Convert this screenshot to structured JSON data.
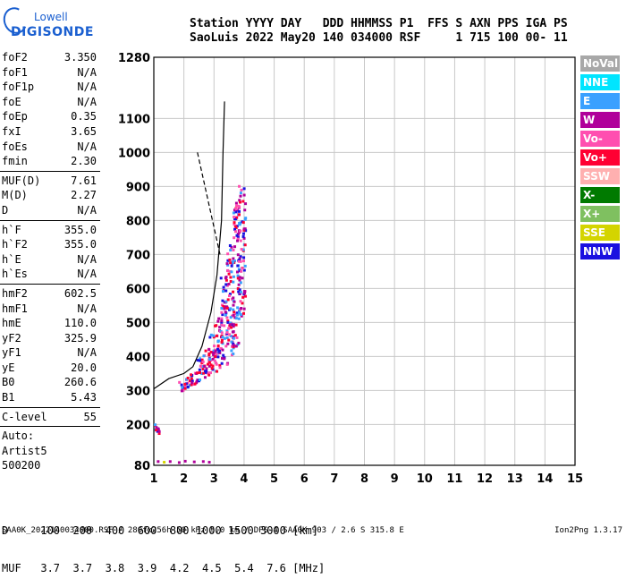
{
  "logo": {
    "line1": "Lowell",
    "line2": "DIGISONDE"
  },
  "header": {
    "line1": "Station YYYY DAY   DDD HHMMSS P1  FFS S AXN PPS IGA PS",
    "line2": "SaoLuis 2022 May20 140 034000 RSF     1 715 100 00- 11"
  },
  "params": [
    {
      "label": "foF2",
      "value": "3.350"
    },
    {
      "label": "foF1",
      "value": "N/A"
    },
    {
      "label": "foF1p",
      "value": "N/A"
    },
    {
      "label": "foE",
      "value": "N/A"
    },
    {
      "label": "foEp",
      "value": "0.35"
    },
    {
      "label": "fxI",
      "value": "3.65"
    },
    {
      "label": "foEs",
      "value": "N/A"
    },
    {
      "label": "fmin",
      "value": "2.30"
    },
    {
      "sep": true
    },
    {
      "label": "MUF(D)",
      "value": "7.61"
    },
    {
      "label": "M(D)",
      "value": "2.27"
    },
    {
      "label": "D",
      "value": "N/A"
    },
    {
      "sep": true
    },
    {
      "label": "h`F",
      "value": "355.0"
    },
    {
      "label": "h`F2",
      "value": "355.0"
    },
    {
      "label": "h`E",
      "value": "N/A"
    },
    {
      "label": "h`Es",
      "value": "N/A"
    },
    {
      "sep": true
    },
    {
      "label": "hmF2",
      "value": "602.5"
    },
    {
      "label": "hmF1",
      "value": "N/A"
    },
    {
      "label": "hmE",
      "value": "110.0"
    },
    {
      "label": "yF2",
      "value": "325.9"
    },
    {
      "label": "yF1",
      "value": "N/A"
    },
    {
      "label": "yE",
      "value": "20.0"
    },
    {
      "label": "B0",
      "value": "260.6"
    },
    {
      "label": "B1",
      "value": "5.43"
    },
    {
      "sep": true
    },
    {
      "label": "C-level",
      "value": "55"
    },
    {
      "sep": true
    },
    {
      "text": "Auto:"
    },
    {
      "text": "Artist5"
    },
    {
      "text": "500200"
    }
  ],
  "legend": [
    {
      "label": "NoVal",
      "bg": "#a8a8a8",
      "fg": "#ffffff"
    },
    {
      "label": "NNE",
      "bg": "#00e5ff",
      "fg": "#ffffff"
    },
    {
      "label": "E",
      "bg": "#3aa0ff",
      "fg": "#ffffff"
    },
    {
      "label": "W",
      "bg": "#b0009a",
      "fg": "#ffffff"
    },
    {
      "label": "Vo-",
      "bg": "#ff4fb0",
      "fg": "#ffffff"
    },
    {
      "label": "Vo+",
      "bg": "#ff0033",
      "fg": "#ffffff"
    },
    {
      "label": "SSW",
      "bg": "#ffb0b0",
      "fg": "#ffffff"
    },
    {
      "label": "X-",
      "bg": "#007a00",
      "fg": "#ffffff"
    },
    {
      "label": "X+",
      "bg": "#7fc060",
      "fg": "#ffffff"
    },
    {
      "label": "SSE",
      "bg": "#d4d400",
      "fg": "#ffffff"
    },
    {
      "label": "NNW",
      "bg": "#1a10e0",
      "fg": "#ffffff"
    }
  ],
  "chart_data": {
    "type": "scatter",
    "xlim": [
      1,
      15
    ],
    "ylim": [
      80,
      1280
    ],
    "x_ticks": [
      1,
      2,
      3,
      4,
      5,
      6,
      7,
      8,
      9,
      10,
      11,
      12,
      13,
      14,
      15
    ],
    "y_ticks": [
      80,
      200,
      300,
      400,
      500,
      600,
      700,
      800,
      900,
      1000,
      1100,
      1280
    ],
    "grid": true,
    "colors": {
      "W": "#b0009a",
      "Vo-": "#ff4fb0",
      "Vo+": "#ff0033",
      "NNW": "#1a10e0",
      "E": "#3aa0ff",
      "SSE": "#d4d400",
      "NoVal": "#a8a8a8",
      "trace": "#000000"
    },
    "echo_bands": [
      {
        "f": 1.1,
        "h_min": 175,
        "h_max": 205
      },
      {
        "f": 1.9,
        "h_min": 300,
        "h_max": 330
      },
      {
        "f": 2.1,
        "h_min": 310,
        "h_max": 345
      },
      {
        "f": 2.3,
        "h_min": 320,
        "h_max": 360
      },
      {
        "f": 2.5,
        "h_min": 330,
        "h_max": 400
      },
      {
        "f": 2.7,
        "h_min": 340,
        "h_max": 430
      },
      {
        "f": 2.9,
        "h_min": 350,
        "h_max": 470
      },
      {
        "f": 3.1,
        "h_min": 360,
        "h_max": 530
      },
      {
        "f": 3.3,
        "h_min": 380,
        "h_max": 640
      },
      {
        "f": 3.5,
        "h_min": 400,
        "h_max": 750
      },
      {
        "f": 3.7,
        "h_min": 430,
        "h_max": 860
      },
      {
        "f": 3.9,
        "h_min": 520,
        "h_max": 910
      }
    ],
    "profile_line": [
      {
        "f": 1.0,
        "h": 305
      },
      {
        "f": 1.5,
        "h": 335
      },
      {
        "f": 2.0,
        "h": 350
      },
      {
        "f": 2.3,
        "h": 370
      },
      {
        "f": 2.6,
        "h": 430
      },
      {
        "f": 2.9,
        "h": 530
      },
      {
        "f": 3.1,
        "h": 640
      },
      {
        "f": 3.25,
        "h": 800
      },
      {
        "f": 3.3,
        "h": 1000
      },
      {
        "f": 3.35,
        "h": 1150
      }
    ],
    "dashed_line": [
      {
        "f": 2.45,
        "h": 1000
      },
      {
        "f": 2.7,
        "h": 900
      },
      {
        "f": 3.0,
        "h": 780
      },
      {
        "f": 3.2,
        "h": 700
      }
    ]
  },
  "muf_table": {
    "line1": "D     100  200  400  600  800 1000 1500 3000 [km]",
    "line2": "MUF   3.7  3.7  3.8  3.9  4.2  4.5  5.4  7.6 [MHz]"
  },
  "footer": {
    "left": "SAA0K_2022140034000.RSF / 280fx256h 50 kHz 5.0 km / DPS-4 SAA0K 903 / 2.6 S 315.8 E",
    "right": "Ion2Png 1.3.17"
  }
}
